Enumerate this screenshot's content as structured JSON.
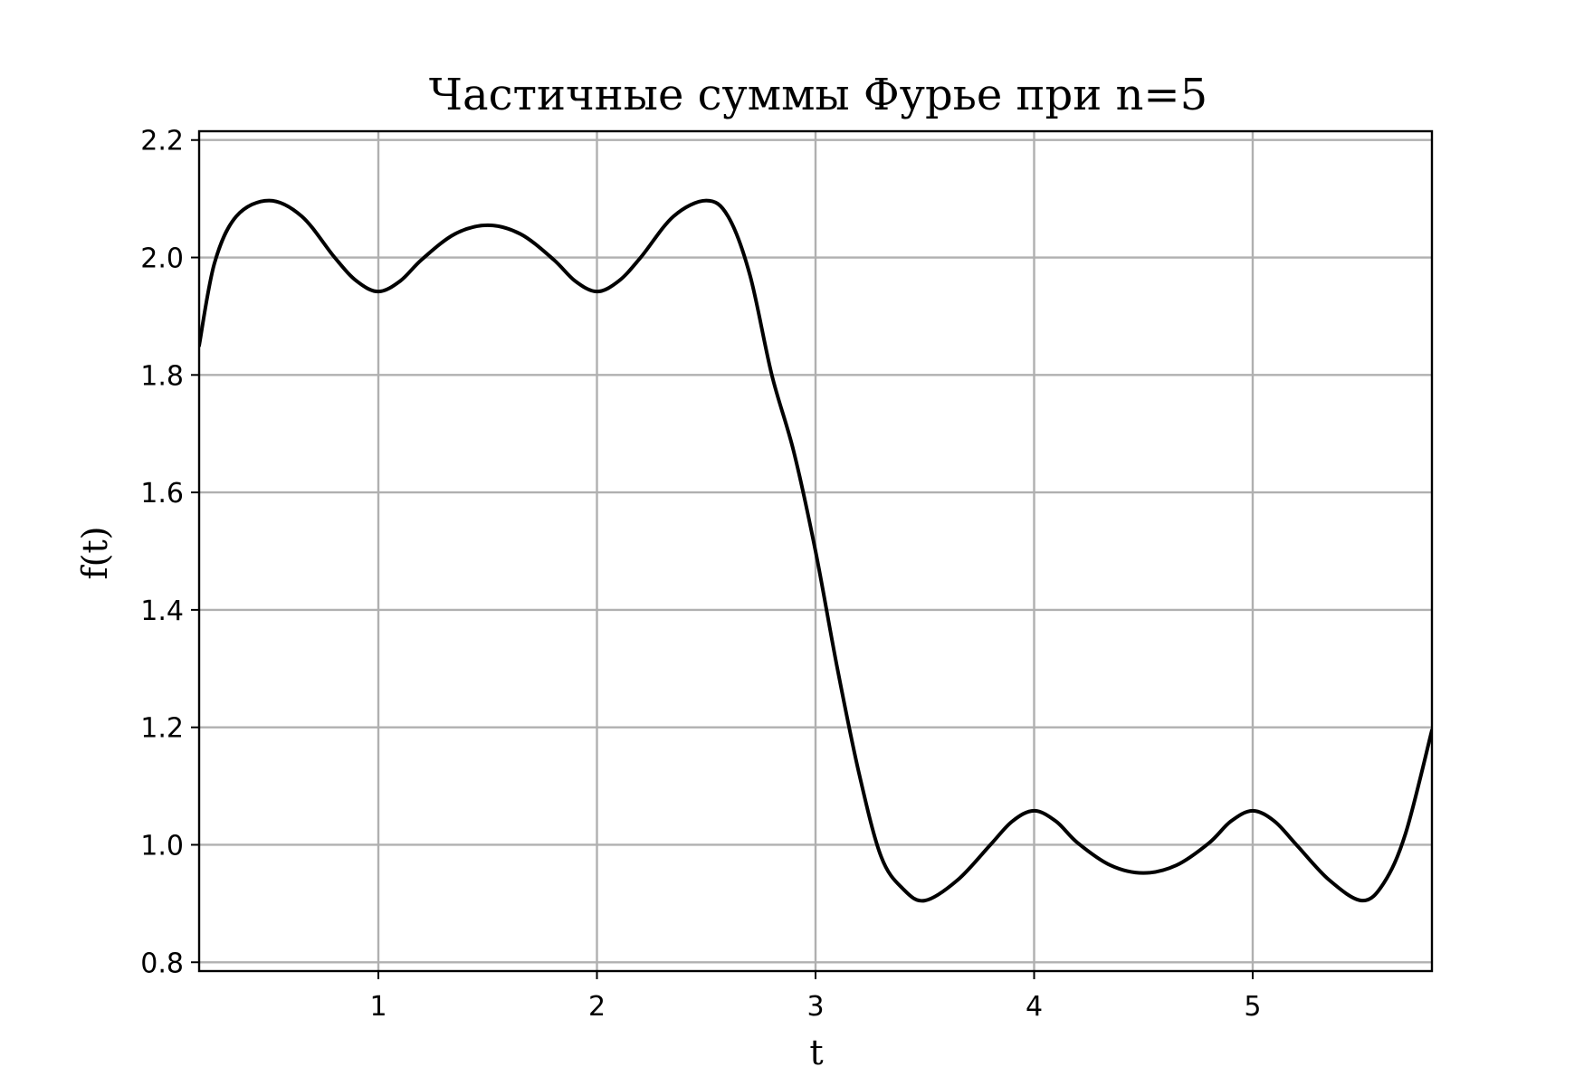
{
  "chart_data": {
    "type": "line",
    "title": "Частичные суммы Фурье при n=5",
    "xlabel": "t",
    "ylabel": "f(t)",
    "xlim": [
      0.18,
      5.82
    ],
    "ylim": [
      0.785,
      2.215
    ],
    "grid": true,
    "x_ticks": [
      1,
      2,
      3,
      4,
      5
    ],
    "y_ticks": [
      0.8,
      1.0,
      1.2,
      1.4,
      1.6,
      1.8,
      2.0,
      2.2
    ],
    "x_tick_labels": [
      "1",
      "2",
      "3",
      "4",
      "5"
    ],
    "y_tick_labels": [
      "0.8",
      "1.0",
      "1.2",
      "1.4",
      "1.6",
      "1.8",
      "2.0",
      "2.2"
    ],
    "series": [
      {
        "color": "#000000",
        "x": [
          0.18,
          0.25,
          0.35,
          0.5,
          0.65,
          0.8,
          0.9,
          1.0,
          1.1,
          1.2,
          1.35,
          1.5,
          1.65,
          1.8,
          1.9,
          2.0,
          2.1,
          2.2,
          2.35,
          2.5,
          2.6,
          2.7,
          2.8,
          2.9,
          3.0,
          3.1,
          3.2,
          3.3,
          3.4,
          3.5,
          3.65,
          3.8,
          3.9,
          4.0,
          4.1,
          4.2,
          4.35,
          4.5,
          4.65,
          4.8,
          4.9,
          5.0,
          5.1,
          5.2,
          5.35,
          5.5,
          5.6,
          5.7,
          5.82
        ],
        "y": [
          1.85,
          1.99,
          2.07,
          2.097,
          2.07,
          2.0,
          1.96,
          1.942,
          1.96,
          1.997,
          2.04,
          2.055,
          2.04,
          1.997,
          1.96,
          1.942,
          1.96,
          2.0,
          2.07,
          2.097,
          2.07,
          1.97,
          1.8,
          1.67,
          1.5,
          1.3,
          1.12,
          0.98,
          0.925,
          0.905,
          0.94,
          1.0,
          1.04,
          1.058,
          1.04,
          1.003,
          0.965,
          0.952,
          0.965,
          1.003,
          1.04,
          1.058,
          1.04,
          1.0,
          0.94,
          0.905,
          0.935,
          1.02,
          1.195
        ]
      }
    ]
  }
}
